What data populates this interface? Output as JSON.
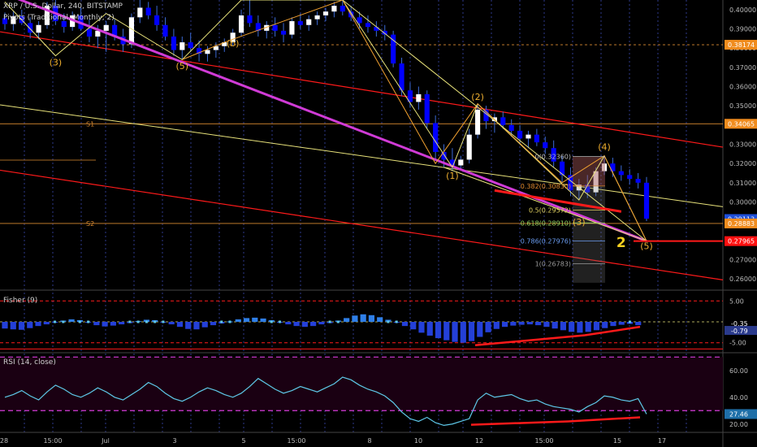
{
  "header": {
    "symbol_line": "XRP / U.S. Dollar, 240, BITSTAMP",
    "pivots_line": "Pivots (Traditional, Monthly, 2)"
  },
  "colors": {
    "bg": "#000000",
    "up": "#ffffff",
    "down": "#0000ff",
    "wick": "#3b6ad6",
    "grid": "#2e3a8c",
    "red": "#ff1a1a",
    "magenta": "#d03bd6",
    "yellow": "#e8e27a",
    "orange": "#f0a030",
    "pivot": "#d98a30",
    "rsi_line": "#5ec8e8",
    "rsi_band": "#d23bd6",
    "rsi_bg": "#1a0012",
    "label_bg_red": "#ff1010",
    "label_bg_blue": "#1e4fd9",
    "label_bg_orange": "#f08c1e"
  },
  "x_axis": {
    "ticks": [
      "28",
      "15:00",
      "Jul",
      "3",
      "5",
      "15:00",
      "8",
      "10",
      "12",
      "15:00",
      "15",
      "17"
    ]
  },
  "chart_data": [
    {
      "type": "candlestick",
      "title": "XRP / U.S. Dollar, 240, BITSTAMP",
      "y_axis": {
        "min": 0.255,
        "max": 0.405
      },
      "y_ticks": [
        "0.40000",
        "0.39000",
        "0.38000",
        "0.37000",
        "0.36000",
        "0.35000",
        "0.33000",
        "0.32000",
        "0.31000",
        "0.30000",
        "0.28000",
        "0.27000",
        "0.26000"
      ],
      "price_labels": [
        {
          "text": "0.38174",
          "value": 0.38174,
          "color": "orange"
        },
        {
          "text": "0.34065",
          "value": 0.34065,
          "color": "orange"
        },
        {
          "text": "0.29113",
          "value": 0.29113,
          "color": "blue"
        },
        {
          "text": "0.28883",
          "value": 0.28883,
          "color": "orange"
        },
        {
          "text": "0.27965",
          "value": 0.27965,
          "color": "red"
        }
      ],
      "pivots": [
        {
          "name": "S1",
          "value": 0.34065
        },
        {
          "name": "S2",
          "value": 0.28883
        }
      ],
      "candles": [
        [
          0.3955,
          0.3985,
          0.3895,
          0.3925
        ],
        [
          0.3925,
          0.399,
          0.389,
          0.3965
        ],
        [
          0.3965,
          0.4,
          0.392,
          0.393
        ],
        [
          0.393,
          0.396,
          0.385,
          0.388
        ],
        [
          0.388,
          0.394,
          0.3845,
          0.392
        ],
        [
          0.392,
          0.404,
          0.39,
          0.402
        ],
        [
          0.402,
          0.405,
          0.392,
          0.394
        ],
        [
          0.394,
          0.398,
          0.388,
          0.391
        ],
        [
          0.391,
          0.399,
          0.389,
          0.397
        ],
        [
          0.397,
          0.401,
          0.389,
          0.39
        ],
        [
          0.39,
          0.395,
          0.383,
          0.386
        ],
        [
          0.386,
          0.392,
          0.38,
          0.389
        ],
        [
          0.389,
          0.394,
          0.378,
          0.392
        ],
        [
          0.392,
          0.395,
          0.384,
          0.386
        ],
        [
          0.386,
          0.39,
          0.378,
          0.382
        ],
        [
          0.382,
          0.398,
          0.38,
          0.396
        ],
        [
          0.396,
          0.405,
          0.393,
          0.401
        ],
        [
          0.401,
          0.404,
          0.395,
          0.397
        ],
        [
          0.397,
          0.402,
          0.389,
          0.392
        ],
        [
          0.392,
          0.396,
          0.384,
          0.386
        ],
        [
          0.386,
          0.39,
          0.376,
          0.379
        ],
        [
          0.379,
          0.386,
          0.374,
          0.383
        ],
        [
          0.383,
          0.388,
          0.378,
          0.38
        ],
        [
          0.38,
          0.384,
          0.373,
          0.377
        ],
        [
          0.377,
          0.381,
          0.373,
          0.379
        ],
        [
          0.379,
          0.383,
          0.375,
          0.381
        ],
        [
          0.381,
          0.385,
          0.378,
          0.383
        ],
        [
          0.383,
          0.39,
          0.381,
          0.388
        ],
        [
          0.388,
          0.4,
          0.386,
          0.397
        ],
        [
          0.397,
          0.405,
          0.391,
          0.393
        ],
        [
          0.393,
          0.397,
          0.386,
          0.389
        ],
        [
          0.389,
          0.394,
          0.385,
          0.392
        ],
        [
          0.392,
          0.396,
          0.386,
          0.389
        ],
        [
          0.389,
          0.393,
          0.383,
          0.387
        ],
        [
          0.387,
          0.396,
          0.385,
          0.394
        ],
        [
          0.394,
          0.398,
          0.39,
          0.392
        ],
        [
          0.392,
          0.397,
          0.389,
          0.395
        ],
        [
          0.395,
          0.399,
          0.392,
          0.397
        ],
        [
          0.397,
          0.401,
          0.394,
          0.399
        ],
        [
          0.399,
          0.404,
          0.396,
          0.402
        ],
        [
          0.402,
          0.405,
          0.397,
          0.399
        ],
        [
          0.399,
          0.402,
          0.394,
          0.396
        ],
        [
          0.396,
          0.399,
          0.39,
          0.393
        ],
        [
          0.393,
          0.397,
          0.388,
          0.391
        ],
        [
          0.391,
          0.394,
          0.386,
          0.389
        ],
        [
          0.389,
          0.392,
          0.384,
          0.387
        ],
        [
          0.387,
          0.389,
          0.37,
          0.372
        ],
        [
          0.372,
          0.375,
          0.355,
          0.358
        ],
        [
          0.358,
          0.362,
          0.349,
          0.352
        ],
        [
          0.352,
          0.36,
          0.348,
          0.356
        ],
        [
          0.356,
          0.358,
          0.338,
          0.341
        ],
        [
          0.341,
          0.345,
          0.322,
          0.326
        ],
        [
          0.326,
          0.33,
          0.318,
          0.322
        ],
        [
          0.322,
          0.328,
          0.316,
          0.319
        ],
        [
          0.319,
          0.324,
          0.317,
          0.322
        ],
        [
          0.322,
          0.338,
          0.32,
          0.335
        ],
        [
          0.335,
          0.351,
          0.333,
          0.348
        ],
        [
          0.348,
          0.35,
          0.338,
          0.342
        ],
        [
          0.342,
          0.346,
          0.336,
          0.344
        ],
        [
          0.344,
          0.347,
          0.338,
          0.34
        ],
        [
          0.34,
          0.343,
          0.334,
          0.337
        ],
        [
          0.337,
          0.34,
          0.33,
          0.333
        ],
        [
          0.333,
          0.337,
          0.328,
          0.335
        ],
        [
          0.335,
          0.338,
          0.329,
          0.331
        ],
        [
          0.331,
          0.334,
          0.325,
          0.328
        ],
        [
          0.328,
          0.332,
          0.318,
          0.321
        ],
        [
          0.321,
          0.324,
          0.31,
          0.314
        ],
        [
          0.314,
          0.318,
          0.303,
          0.306
        ],
        [
          0.306,
          0.312,
          0.301,
          0.309
        ],
        [
          0.309,
          0.314,
          0.302,
          0.305
        ],
        [
          0.305,
          0.318,
          0.303,
          0.316
        ],
        [
          0.316,
          0.324,
          0.314,
          0.32
        ],
        [
          0.32,
          0.323,
          0.313,
          0.316
        ],
        [
          0.316,
          0.319,
          0.311,
          0.314
        ],
        [
          0.314,
          0.317,
          0.309,
          0.312
        ],
        [
          0.312,
          0.315,
          0.307,
          0.31
        ],
        [
          0.31,
          0.313,
          0.29,
          0.2913
        ]
      ],
      "fib": [
        {
          "text": "0(0.32360)",
          "value": 0.3236
        },
        {
          "text": "0.382(0.30830)",
          "value": 0.3083
        },
        {
          "text": "0.5(0.29572)",
          "value": 0.29572
        },
        {
          "text": "0.618(0.28910)",
          "value": 0.2891
        },
        {
          "text": "0.786(0.27976)",
          "value": 0.27976
        },
        {
          "text": "1(0.26783)",
          "value": 0.26783
        }
      ],
      "wave_labels": [
        {
          "text": "(3)",
          "i": 6,
          "v": 0.371
        },
        {
          "text": "(5)",
          "i": 21,
          "v": 0.369
        },
        {
          "text": "(b)",
          "i": 27,
          "v": 0.381
        },
        {
          "text": "(2)",
          "i": 56,
          "v": 0.353
        },
        {
          "text": "(1)",
          "i": 53,
          "v": 0.312
        },
        {
          "text": "(4)",
          "i": 71,
          "v": 0.327
        },
        {
          "text": "(3)",
          "i": 68,
          "v": 0.288
        },
        {
          "text": "(5)",
          "i": 76,
          "v": 0.2755
        },
        {
          "text": "2",
          "i": 73,
          "v": 0.2765
        }
      ]
    },
    {
      "type": "histogram",
      "title": "Fisher (9)",
      "y_ticks": [
        "5.00",
        "-5.00"
      ],
      "last_values": [
        "-0.35",
        "-0.79"
      ],
      "y_axis": {
        "min": -7,
        "max": 7
      },
      "values": [
        -1.6,
        -1.8,
        -1.9,
        -1.5,
        -1.0,
        -0.6,
        -0.2,
        0.3,
        0.6,
        0.4,
        -0.2,
        -0.8,
        -1.1,
        -0.9,
        -0.6,
        -0.3,
        0.2,
        0.5,
        0.4,
        -0.1,
        -0.6,
        -1.2,
        -1.7,
        -1.8,
        -1.3,
        -0.8,
        -0.4,
        0.1,
        0.6,
        0.9,
        1.0,
        0.8,
        0.4,
        -0.1,
        -0.6,
        -1.0,
        -1.2,
        -1.0,
        -0.6,
        -0.3,
        0.3,
        0.9,
        1.5,
        1.8,
        1.6,
        1.1,
        0.5,
        -0.2,
        -1.0,
        -1.8,
        -2.6,
        -3.3,
        -3.9,
        -4.4,
        -4.8,
        -5.0,
        -4.6,
        -3.6,
        -2.5,
        -1.7,
        -1.2,
        -0.9,
        -0.7,
        -0.6,
        -0.8,
        -1.2,
        -1.6,
        -2.0,
        -2.4,
        -2.6,
        -2.4,
        -2.0,
        -1.5,
        -1.0,
        -0.7,
        -0.5,
        -0.79
      ]
    },
    {
      "type": "line",
      "title": "RSI (14, close)",
      "y_ticks": [
        "60.00",
        "40.00",
        "20.00"
      ],
      "last_value": "27.46",
      "bands": [
        70,
        30
      ],
      "y_axis": {
        "min": 15,
        "max": 72
      },
      "values": [
        40,
        42,
        45,
        41,
        38,
        44,
        49,
        46,
        42,
        40,
        43,
        47,
        44,
        40,
        38,
        42,
        46,
        51,
        48,
        43,
        39,
        37,
        40,
        44,
        47,
        45,
        42,
        40,
        43,
        48,
        54,
        50,
        46,
        43,
        45,
        48,
        46,
        44,
        47,
        50,
        55,
        53,
        49,
        46,
        44,
        41,
        36,
        29,
        24,
        22,
        25,
        21,
        19,
        20,
        22,
        24,
        38,
        43,
        40,
        41,
        42,
        39,
        37,
        38,
        35,
        33,
        32,
        31,
        29,
        33,
        36,
        41,
        40,
        38,
        37,
        39,
        27.46
      ]
    }
  ]
}
